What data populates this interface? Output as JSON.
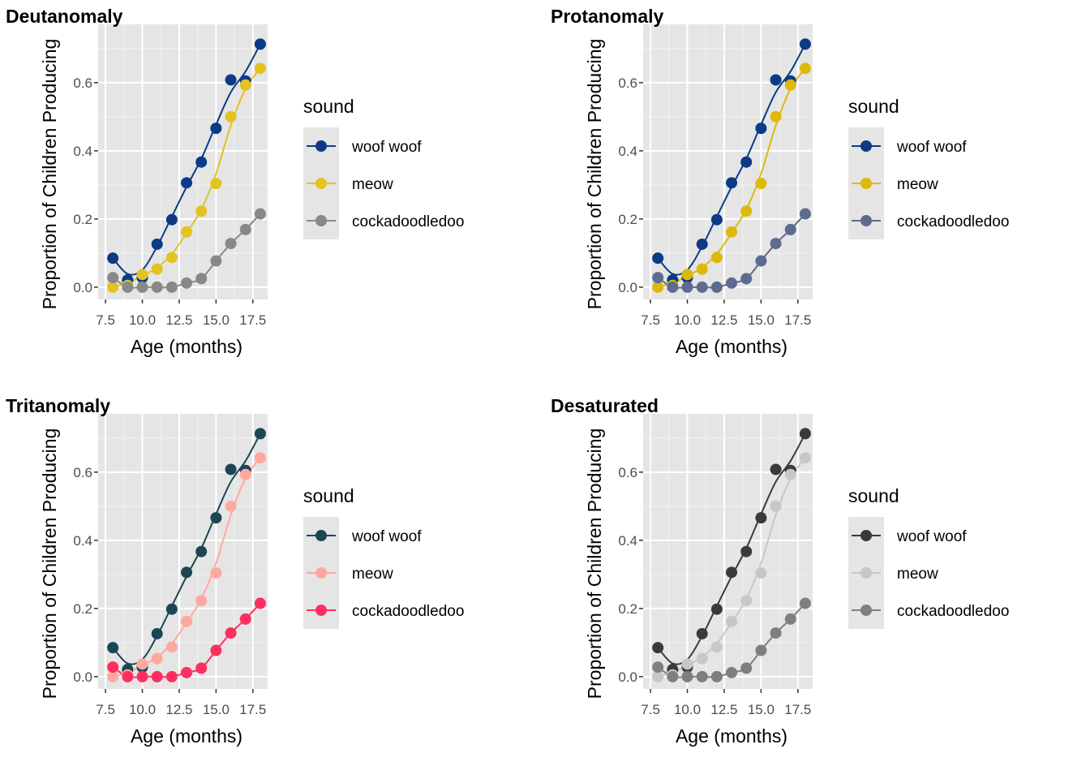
{
  "chart_data": [
    {
      "type": "line",
      "title": "Deutanomaly",
      "xlabel": "Age (months)",
      "ylabel": "Proportion of Children Producing",
      "xlim": [
        7.0,
        18.5
      ],
      "ylim": [
        -0.036,
        0.771
      ],
      "x_ticks": [
        "7.5",
        "10.0",
        "12.5",
        "15.0",
        "17.5"
      ],
      "y_ticks": [
        "0.0",
        "0.2",
        "0.4",
        "0.6"
      ],
      "legend_title": "sound",
      "legend_position": "right",
      "grid": true,
      "x": [
        8,
        9,
        10,
        11,
        12,
        13,
        14,
        15,
        16,
        17,
        18
      ],
      "series": [
        {
          "name": "woof woof",
          "color": "#0B3A86",
          "values": [
            0.085,
            0.021,
            0.028,
            0.126,
            0.198,
            0.306,
            0.367,
            0.466,
            0.608,
            0.605,
            0.713
          ]
        },
        {
          "name": "meow",
          "color": "#E2C321",
          "values": [
            0.0,
            0.005,
            0.037,
            0.053,
            0.087,
            0.162,
            0.223,
            0.304,
            0.5,
            0.593,
            0.642
          ]
        },
        {
          "name": "cockadoodledoo",
          "color": "#888888",
          "values": [
            0.028,
            0.0,
            0.0,
            0.0,
            0.0,
            0.012,
            0.025,
            0.077,
            0.128,
            0.169,
            0.215
          ]
        }
      ]
    },
    {
      "type": "line",
      "title": "Protanomaly",
      "xlabel": "Age (months)",
      "ylabel": "Proportion of Children Producing",
      "xlim": [
        7.0,
        18.5
      ],
      "ylim": [
        -0.036,
        0.771
      ],
      "x_ticks": [
        "7.5",
        "10.0",
        "12.5",
        "15.0",
        "17.5"
      ],
      "y_ticks": [
        "0.0",
        "0.2",
        "0.4",
        "0.6"
      ],
      "legend_title": "sound",
      "legend_position": "right",
      "grid": true,
      "x": [
        8,
        9,
        10,
        11,
        12,
        13,
        14,
        15,
        16,
        17,
        18
      ],
      "series": [
        {
          "name": "woof woof",
          "color": "#0B3A86",
          "values": [
            0.085,
            0.021,
            0.028,
            0.126,
            0.198,
            0.306,
            0.367,
            0.466,
            0.608,
            0.605,
            0.713
          ]
        },
        {
          "name": "meow",
          "color": "#DDBA0A",
          "values": [
            0.0,
            0.005,
            0.037,
            0.053,
            0.087,
            0.162,
            0.223,
            0.304,
            0.5,
            0.593,
            0.642
          ]
        },
        {
          "name": "cockadoodledoo",
          "color": "#5E6A8F",
          "values": [
            0.028,
            0.0,
            0.0,
            0.0,
            0.0,
            0.012,
            0.025,
            0.077,
            0.128,
            0.169,
            0.215
          ]
        }
      ]
    },
    {
      "type": "line",
      "title": "Tritanomaly",
      "xlabel": "Age (months)",
      "ylabel": "Proportion of Children Producing",
      "xlim": [
        7.0,
        18.5
      ],
      "ylim": [
        -0.036,
        0.771
      ],
      "x_ticks": [
        "7.5",
        "10.0",
        "12.5",
        "15.0",
        "17.5"
      ],
      "y_ticks": [
        "0.0",
        "0.2",
        "0.4",
        "0.6"
      ],
      "legend_title": "sound",
      "legend_position": "right",
      "grid": true,
      "x": [
        8,
        9,
        10,
        11,
        12,
        13,
        14,
        15,
        16,
        17,
        18
      ],
      "series": [
        {
          "name": "woof woof",
          "color": "#1B4652",
          "values": [
            0.085,
            0.021,
            0.028,
            0.126,
            0.198,
            0.306,
            0.367,
            0.466,
            0.608,
            0.605,
            0.713
          ]
        },
        {
          "name": "meow",
          "color": "#FFA99E",
          "values": [
            0.0,
            0.005,
            0.037,
            0.053,
            0.087,
            0.162,
            0.223,
            0.304,
            0.5,
            0.593,
            0.642
          ]
        },
        {
          "name": "cockadoodledoo",
          "color": "#FF2E60",
          "values": [
            0.028,
            0.0,
            0.0,
            0.0,
            0.0,
            0.012,
            0.025,
            0.077,
            0.128,
            0.169,
            0.215
          ]
        }
      ]
    },
    {
      "type": "line",
      "title": "Desaturated",
      "xlabel": "Age (months)",
      "ylabel": "Proportion of Children Producing",
      "xlim": [
        7.0,
        18.5
      ],
      "ylim": [
        -0.036,
        0.771
      ],
      "x_ticks": [
        "7.5",
        "10.0",
        "12.5",
        "15.0",
        "17.5"
      ],
      "y_ticks": [
        "0.0",
        "0.2",
        "0.4",
        "0.6"
      ],
      "legend_title": "sound",
      "legend_position": "right",
      "grid": true,
      "x": [
        8,
        9,
        10,
        11,
        12,
        13,
        14,
        15,
        16,
        17,
        18
      ],
      "series": [
        {
          "name": "woof woof",
          "color": "#3A3A3A",
          "values": [
            0.085,
            0.021,
            0.028,
            0.126,
            0.198,
            0.306,
            0.367,
            0.466,
            0.608,
            0.605,
            0.713
          ]
        },
        {
          "name": "meow",
          "color": "#C7C7C7",
          "values": [
            0.0,
            0.005,
            0.037,
            0.053,
            0.087,
            0.162,
            0.223,
            0.304,
            0.5,
            0.593,
            0.642
          ]
        },
        {
          "name": "cockadoodledoo",
          "color": "#7F7F7F",
          "values": [
            0.028,
            0.0,
            0.0,
            0.0,
            0.0,
            0.012,
            0.025,
            0.077,
            0.128,
            0.169,
            0.215
          ]
        }
      ]
    }
  ]
}
